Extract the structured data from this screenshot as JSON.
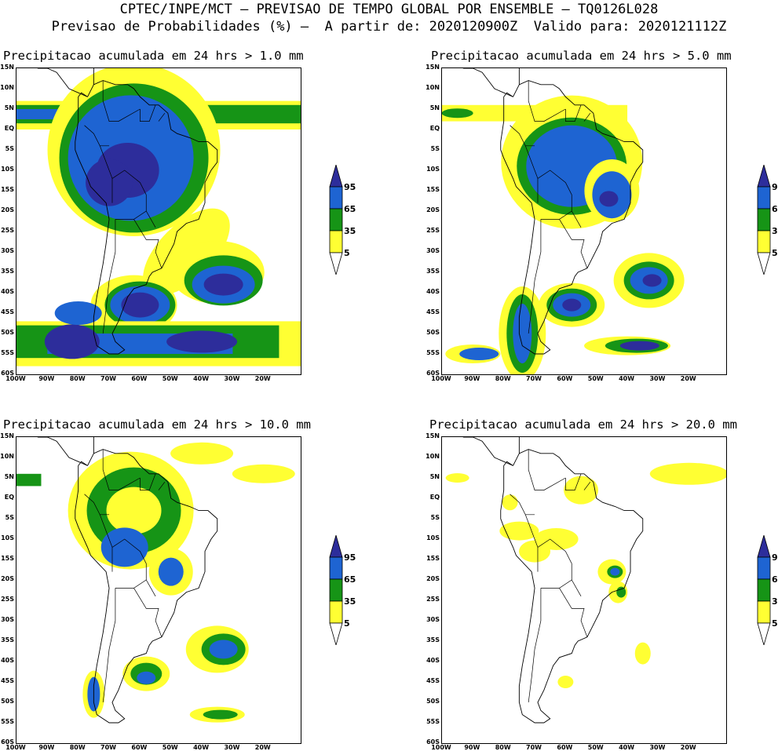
{
  "header": {
    "line1": "CPTEC/INPE/MCT – PREVISAO DE TEMPO GLOBAL POR ENSEMBLE – TQ0126L028",
    "line2": "Previsao de Probabilidades (%) –  A partir de: 2020120900Z  Valido para: 2020121112Z"
  },
  "colors": {
    "yellow": "#ffff33",
    "green": "#169416",
    "blue": "#1e64d2",
    "navy": "#2d2d9b",
    "coast": "#000000"
  },
  "axes": {
    "lat_labels": [
      "15N",
      "10N",
      "5N",
      "EQ",
      "5S",
      "10S",
      "15S",
      "20S",
      "25S",
      "30S",
      "35S",
      "40S",
      "45S",
      "50S",
      "55S",
      "60S"
    ],
    "lon_labels": [
      "100W",
      "90W",
      "80W",
      "70W",
      "60W",
      "50W",
      "40W",
      "30W",
      "20W"
    ]
  },
  "legend": {
    "labels": [
      "95",
      "65",
      "35",
      "5"
    ]
  },
  "panels": [
    {
      "title": "Precipitacao acumulada em 24 hrs > 1.0 mm"
    },
    {
      "title": "Precipitacao acumulada em 24 hrs > 5.0 mm"
    },
    {
      "title": "Precipitacao acumulada em 24 hrs > 10.0 mm"
    },
    {
      "title": "Precipitacao acumulada em 24 hrs > 20.0 mm"
    }
  ]
}
